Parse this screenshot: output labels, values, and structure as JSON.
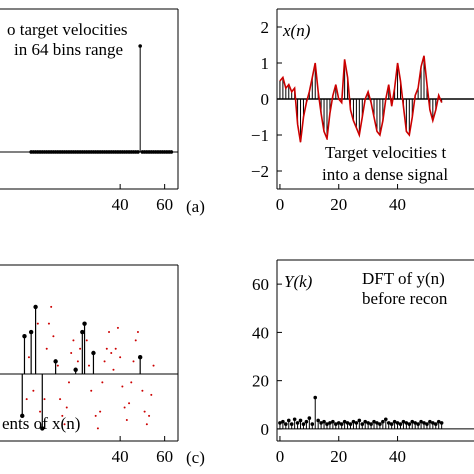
{
  "chart_data": [
    {
      "id": "panel-a",
      "type": "stem",
      "panel_label": "(a)",
      "annotation": [
        "o target velocities",
        "in 64 bins range"
      ],
      "xlim": [
        -14,
        66
      ],
      "ylim": [
        -0.35,
        1.35
      ],
      "xticks": [
        40,
        60
      ],
      "series": [
        {
          "x": [
            0,
            1,
            2,
            3,
            4,
            5,
            6,
            7,
            8,
            9,
            10,
            11,
            12,
            13,
            14,
            15,
            16,
            17,
            18,
            19,
            20,
            21,
            22,
            23,
            24,
            25,
            26,
            27,
            28,
            29,
            30,
            31,
            32,
            33,
            34,
            35,
            36,
            37,
            38,
            39,
            40,
            41,
            42,
            43,
            44,
            45,
            46,
            47,
            48,
            49,
            50,
            51,
            52,
            53,
            54,
            55,
            56,
            57,
            58,
            59,
            60,
            61,
            62,
            63
          ],
          "y": [
            0,
            0,
            0,
            0,
            0,
            0,
            0,
            0,
            0,
            0,
            0,
            0,
            0,
            0,
            0,
            0,
            0,
            0,
            0,
            0,
            0,
            0,
            0,
            0,
            0,
            0,
            0,
            0,
            0,
            0,
            0,
            0,
            0,
            0,
            0,
            0,
            0,
            0,
            0,
            0,
            0,
            0,
            0,
            0,
            0,
            0,
            0,
            0,
            0,
            1,
            0,
            0,
            0,
            0,
            0,
            0,
            0,
            0,
            0,
            0,
            0,
            0,
            0,
            0
          ]
        }
      ]
    },
    {
      "id": "panel-b",
      "type": "line+stem",
      "ylabel_inline": "x(n)",
      "annotation": [
        "Target velocities t",
        "into a dense signal"
      ],
      "xlim": [
        -1,
        66
      ],
      "ylim": [
        -2.5,
        2.5
      ],
      "xticks": [
        0,
        20,
        40
      ],
      "yticks": [
        -2,
        -1,
        0,
        1,
        2
      ],
      "series": [
        {
          "name": "",
          "color": "#cc0000",
          "x": [
            0,
            1,
            2,
            3,
            4,
            5,
            6,
            7,
            8,
            9,
            10,
            11,
            12,
            13,
            14,
            15,
            16,
            17,
            18,
            19,
            20,
            21,
            22,
            23,
            24,
            25,
            26,
            27,
            28,
            29,
            30,
            31,
            32,
            33,
            34,
            35,
            36,
            37,
            38,
            39,
            40,
            41,
            42,
            43,
            44,
            45,
            46,
            47,
            48,
            49,
            50,
            51,
            52,
            53,
            54,
            55
          ],
          "y": [
            0.5,
            0.6,
            0.3,
            0.4,
            0.2,
            0.3,
            -0.7,
            -1.2,
            -0.5,
            -0.1,
            0.2,
            0.6,
            1.0,
            0.2,
            -0.4,
            -0.9,
            -1.1,
            -0.4,
            0.1,
            0.4,
            0.0,
            -0.1,
            1.1,
            0.6,
            -0.3,
            -0.6,
            -0.8,
            -1.0,
            -0.5,
            0.0,
            0.2,
            -0.1,
            -0.5,
            -0.9,
            -1.0,
            -0.6,
            0.0,
            0.4,
            -0.2,
            0.3,
            1.0,
            0.5,
            -0.2,
            -0.9,
            -1.0,
            -0.5,
            0.1,
            0.3,
            0.9,
            1.2,
            0.4,
            -0.3,
            -0.6,
            -0.3,
            0.1,
            -0.1
          ]
        }
      ]
    },
    {
      "id": "panel-c",
      "type": "stem+scatter",
      "panel_label": "(c)",
      "annotation": "ents of x(n)",
      "xlim": [
        -14,
        66
      ],
      "ylim": [
        -1.6,
        2.6
      ],
      "xticks": [
        40,
        60
      ],
      "series": [
        {
          "name": "",
          "color": "#000000",
          "x": [
            -4,
            -3,
            0,
            2,
            5,
            11,
            20,
            23,
            24,
            28,
            49
          ],
          "y": [
            -1.0,
            0.9,
            1.0,
            1.6,
            -1.3,
            0.3,
            0.1,
            1.0,
            1.2,
            0.5,
            0.4
          ]
        },
        {
          "name": "",
          "color": "#cc0000",
          "x": [
            -2,
            -1,
            1,
            3,
            4,
            6,
            7,
            8,
            9,
            10,
            12,
            13,
            14,
            15,
            16,
            17,
            18,
            19,
            21,
            22,
            25,
            26,
            27,
            29,
            30,
            31,
            32,
            33,
            34,
            35,
            36,
            37,
            38,
            39,
            40,
            41,
            42,
            43,
            44,
            45,
            46,
            47,
            48,
            50,
            51,
            52,
            53,
            54,
            55
          ],
          "y": [
            -0.6,
            0.4,
            -0.4,
            1.2,
            -0.9,
            -0.6,
            0.6,
            1.2,
            1.6,
            0.9,
            0.2,
            -0.6,
            -1.0,
            -1.2,
            -0.8,
            -0.2,
            0.5,
            0.8,
            0.3,
            0.6,
            0.8,
            0.2,
            -0.4,
            -1.0,
            -1.3,
            -0.9,
            -0.2,
            0.3,
            0.6,
            1.0,
            0.5,
            0.1,
            0.6,
            1.1,
            0.4,
            -0.3,
            -0.8,
            -1.1,
            -0.7,
            -0.2,
            0.3,
            0.8,
            1.0,
            -0.4,
            -0.9,
            -1.2,
            -1.0,
            -0.5,
            0.2
          ]
        }
      ]
    },
    {
      "id": "panel-d",
      "type": "stem",
      "ylabel_inline": "Y(k)",
      "annotation": [
        "DFT of y(n)",
        "before recon"
      ],
      "xlim": [
        -1,
        66
      ],
      "ylim": [
        -5,
        70
      ],
      "xticks": [
        0,
        20,
        40
      ],
      "yticks": [
        0,
        20,
        40,
        60
      ],
      "series": [
        {
          "x": [
            0,
            1,
            2,
            3,
            4,
            5,
            6,
            7,
            8,
            9,
            10,
            11,
            12,
            13,
            14,
            15,
            16,
            17,
            18,
            19,
            20,
            21,
            22,
            23,
            24,
            25,
            26,
            27,
            28,
            29,
            30,
            31,
            32,
            33,
            34,
            35,
            36,
            37,
            38,
            39,
            40,
            41,
            42,
            43,
            44,
            45,
            46,
            47,
            48,
            49,
            50,
            51,
            52,
            53,
            54,
            55
          ],
          "y": [
            2.5,
            3.0,
            2.0,
            3.5,
            2.0,
            4.0,
            2.5,
            3.5,
            2.0,
            3.0,
            4.5,
            2.0,
            13.0,
            3.5,
            2.5,
            3.0,
            2.0,
            2.5,
            3.0,
            2.0,
            2.5,
            2.0,
            3.0,
            2.5,
            2.0,
            3.0,
            2.5,
            3.5,
            2.0,
            3.0,
            2.5,
            2.0,
            3.0,
            2.5,
            2.0,
            3.0,
            4.0,
            2.5,
            2.0,
            3.0,
            2.5,
            2.0,
            3.0,
            2.5,
            2.0,
            3.0,
            2.5,
            2.0,
            3.0,
            2.5,
            2.0,
            3.0,
            2.5,
            2.0,
            3.0,
            2.5
          ]
        }
      ]
    }
  ]
}
